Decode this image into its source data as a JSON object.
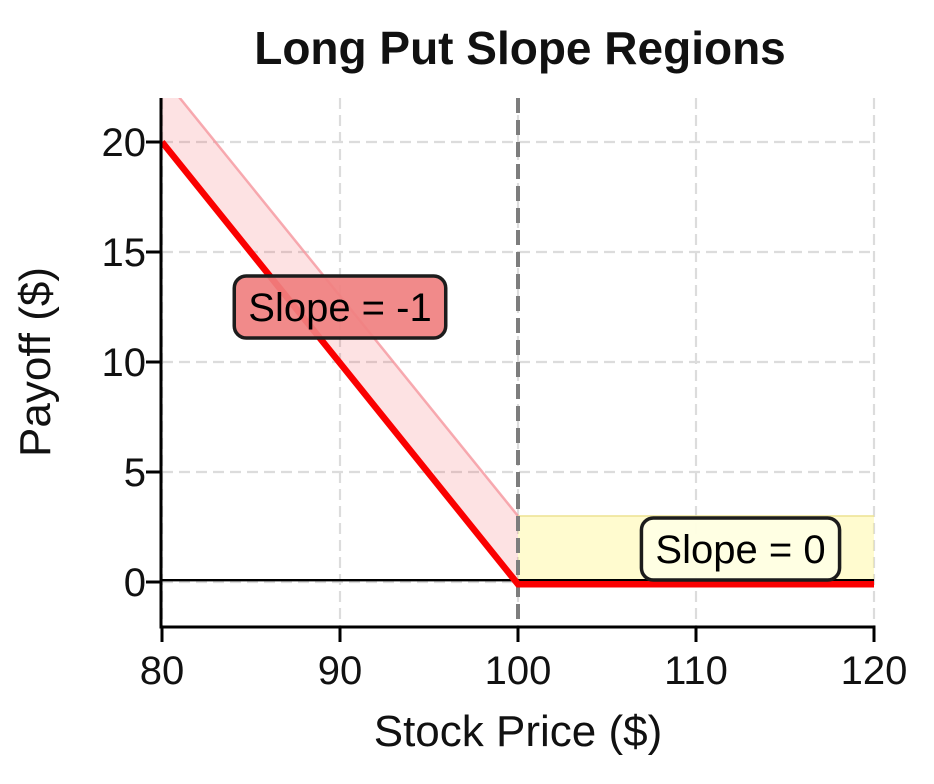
{
  "figure": {
    "background": "#ffffff"
  },
  "chart_data": {
    "type": "line",
    "title": "Long Put Slope Regions",
    "xlabel": "Stock Price ($)",
    "ylabel": "Payoff ($)",
    "xlim": [
      80,
      120
    ],
    "ylim": [
      -2,
      22
    ],
    "xticks": [
      80,
      90,
      100,
      110,
      120
    ],
    "yticks": [
      0,
      5,
      10,
      15,
      20
    ],
    "grid": true,
    "grid_color": "#dcdcdc",
    "legend": false,
    "series": [
      {
        "name": "Long put payoff",
        "x": [
          80,
          100,
          120
        ],
        "y": [
          20,
          0,
          0
        ],
        "color": "#fa0000"
      }
    ],
    "regions": [
      {
        "name": "slope-minus-one-band",
        "shape": "band",
        "x": [
          80,
          100
        ],
        "y_base": [
          20,
          0
        ],
        "offset": 3,
        "fill": "rgba(240,50,60,0.14)",
        "edge": "rgba(245,150,158,0.8)"
      },
      {
        "name": "slope-zero-band",
        "shape": "rect",
        "x0": 100,
        "x1": 120,
        "y0": 0,
        "y1": 3,
        "fill": "rgba(255,244,130,0.38)",
        "edge": "rgba(238,228,150,0.8)"
      }
    ],
    "strike_line": {
      "x": 100,
      "color": "#7d7d7d",
      "style": "dashed"
    },
    "zero_line": {
      "y": 0,
      "color": "#000000"
    },
    "annotations": [
      {
        "label": "Slope = -1",
        "x": 90,
        "y": 12.5,
        "fill": "rgba(240,128,128,0.92)",
        "border": "#1c1c1c",
        "text_color": "#000000"
      },
      {
        "label": "Slope = 0",
        "x": 112.5,
        "y": 1.5,
        "fill": "rgba(255,255,228,0.95)",
        "border": "#1c1c1c",
        "text_color": "#000000"
      }
    ]
  }
}
